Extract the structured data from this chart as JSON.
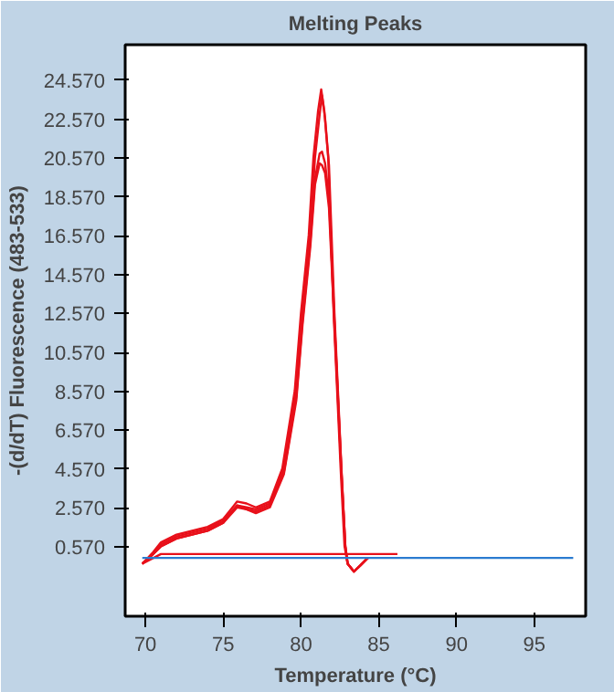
{
  "chart_data": {
    "type": "line",
    "title": "Melting Peaks",
    "xlabel": "Temperature (°C)",
    "ylabel": "-(d/dT) Fluorescence (483-533)",
    "xlim": [
      68.7,
      98.3
    ],
    "ylim": [
      -3.0,
      26.4
    ],
    "xticks": [
      70,
      75,
      80,
      85,
      90,
      95
    ],
    "yticks": [
      {
        "value": 0.57,
        "label": "0.570"
      },
      {
        "value": 2.57,
        "label": "2.570"
      },
      {
        "value": 4.57,
        "label": "4.570"
      },
      {
        "value": 6.57,
        "label": "6.570"
      },
      {
        "value": 8.57,
        "label": "8.570"
      },
      {
        "value": 10.57,
        "label": "10.570"
      },
      {
        "value": 12.57,
        "label": "12.570"
      },
      {
        "value": 14.57,
        "label": "14.570"
      },
      {
        "value": 16.57,
        "label": "16.570"
      },
      {
        "value": 18.57,
        "label": "18.570"
      },
      {
        "value": 20.57,
        "label": "20.570"
      },
      {
        "value": 22.57,
        "label": "22.570"
      },
      {
        "value": 24.57,
        "label": "24.570"
      }
    ],
    "grid": false,
    "series": [
      {
        "color": "#e8101a",
        "x": [
          69.8,
          70.5,
          71,
          72,
          73,
          74,
          75,
          75.9,
          76.5,
          77.1,
          78,
          78.8,
          79.6,
          80.0,
          80.5,
          80.8,
          81.1,
          81.3,
          81.5,
          81.75,
          82.1,
          82.55,
          82.8,
          83.0,
          83.4,
          83.8,
          84.3
        ],
        "values": [
          -0.3,
          0.3,
          0.8,
          1.2,
          1.4,
          1.6,
          2.0,
          2.9,
          2.8,
          2.6,
          2.9,
          4.6,
          8.6,
          12.6,
          16.6,
          20.6,
          23.0,
          24.1,
          23.0,
          20.6,
          12.6,
          4.6,
          0.6,
          -0.3,
          -0.7,
          -0.4,
          0.0
        ]
      },
      {
        "color": "#e8101a",
        "x": [
          69.8,
          70.5,
          71,
          72,
          73,
          74,
          75,
          75.9,
          76.5,
          77.1,
          78,
          78.9,
          79.7,
          80.1,
          80.6,
          80.9,
          81.2,
          81.35,
          81.55,
          81.8,
          82.15,
          82.6,
          82.85,
          83.0,
          83.4,
          83.8,
          84.3
        ],
        "values": [
          -0.3,
          0.2,
          0.7,
          1.1,
          1.3,
          1.5,
          1.9,
          2.7,
          2.6,
          2.5,
          2.8,
          4.6,
          8.6,
          12.6,
          16.6,
          20.6,
          22.8,
          23.8,
          22.6,
          20.2,
          12.6,
          4.6,
          0.6,
          -0.3,
          -0.7,
          -0.4,
          0.0
        ]
      },
      {
        "color": "#e8101a",
        "x": [
          69.8,
          70.5,
          71,
          72,
          73,
          74,
          75,
          75.9,
          76.5,
          77.1,
          78,
          78.9,
          79.7,
          80.1,
          80.6,
          80.9,
          81.2,
          81.35,
          81.55,
          81.8,
          82.15,
          82.6,
          82.85,
          83.0,
          83.4,
          83.8,
          84.3
        ],
        "values": [
          -0.3,
          0.2,
          0.6,
          1.0,
          1.2,
          1.4,
          1.8,
          2.7,
          2.5,
          2.4,
          2.7,
          4.4,
          8.3,
          12.2,
          16.3,
          19.5,
          20.8,
          20.9,
          20.3,
          18.5,
          12.2,
          4.5,
          0.6,
          -0.3,
          -0.7,
          -0.4,
          0.0
        ]
      },
      {
        "color": "#e8101a",
        "x": [
          69.8,
          70.5,
          71,
          72,
          73,
          74,
          75,
          75.9,
          76.5,
          77.1,
          78,
          78.9,
          79.7,
          80.1,
          80.6,
          80.9,
          81.2,
          81.35,
          81.55,
          81.8,
          82.15,
          82.6,
          82.85,
          83.0,
          83.4,
          83.8,
          84.3
        ],
        "values": [
          -0.3,
          0.2,
          0.6,
          1.0,
          1.2,
          1.4,
          1.8,
          2.6,
          2.5,
          2.3,
          2.6,
          4.3,
          8.1,
          12.0,
          16.0,
          19.2,
          20.3,
          20.2,
          19.8,
          18.0,
          12.0,
          4.4,
          0.6,
          -0.3,
          -0.7,
          -0.4,
          0.0
        ]
      },
      {
        "color": "#e8101a",
        "x": [
          69.8,
          71,
          80,
          86.2
        ],
        "values": [
          -0.3,
          0.2,
          0.2,
          0.2
        ]
      },
      {
        "color": "#2a7bd0",
        "x": [
          69.8,
          97.5
        ],
        "values": [
          0.0,
          0.0
        ]
      }
    ]
  }
}
